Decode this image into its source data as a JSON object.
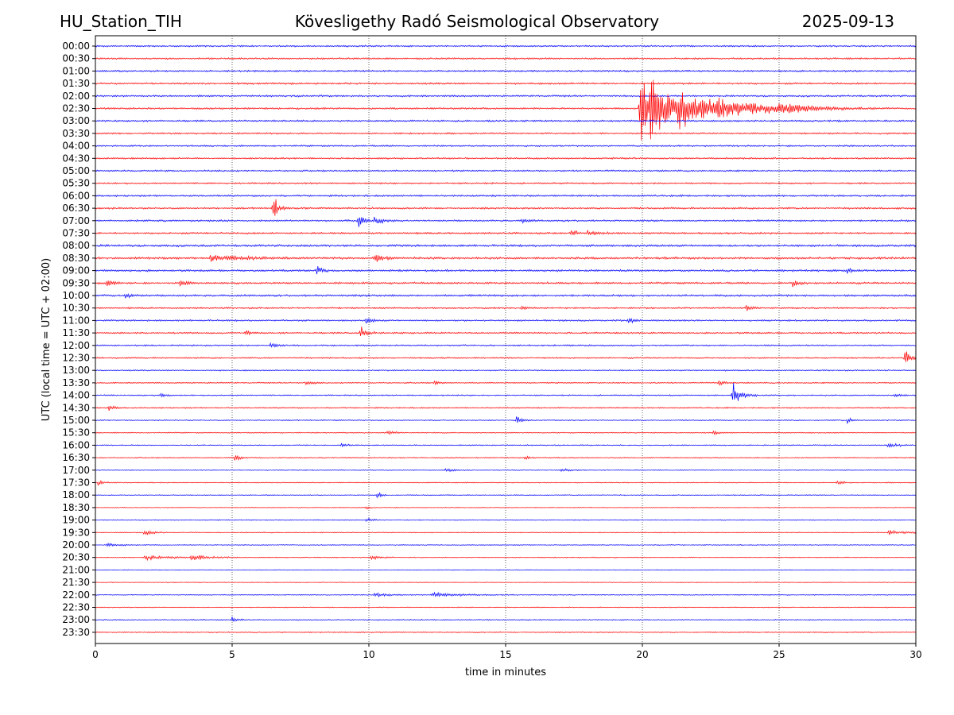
{
  "header": {
    "station": "HU_Station_TIH",
    "observatory": "Kövesligethy Radó Seismological Observatory",
    "date": "2025-09-13"
  },
  "chart_data": {
    "type": "line",
    "title": "Kövesligethy Radó Seismological Observatory",
    "xlabel": "time in minutes",
    "ylabel": "UTC (local time = UTC + 02:00)",
    "xlim": [
      0,
      30
    ],
    "xticks": [
      "0",
      "5",
      "10",
      "15",
      "20",
      "25",
      "30"
    ],
    "grid": "vertical dotted lines at x = 5, 10, 15, 20, 25",
    "colors": {
      "even_rows": "#0000ff",
      "odd_rows": "#ff0000"
    },
    "rows": [
      {
        "label": "00:00",
        "color": "blue",
        "noise": 0.45,
        "events": []
      },
      {
        "label": "00:30",
        "color": "red",
        "noise": 0.45,
        "events": []
      },
      {
        "label": "01:00",
        "color": "blue",
        "noise": 0.5,
        "events": []
      },
      {
        "label": "01:30",
        "color": "red",
        "noise": 0.5,
        "events": []
      },
      {
        "label": "02:00",
        "color": "blue",
        "noise": 0.5,
        "events": []
      },
      {
        "label": "02:30",
        "color": "red",
        "noise": 0.5,
        "events": [
          {
            "t": 19.9,
            "amp": 11,
            "dur": 0.4
          },
          {
            "t": 20.3,
            "amp": 6,
            "dur": 1.0
          },
          {
            "t": 21.3,
            "amp": 3,
            "dur": 1.6
          },
          {
            "t": 22.8,
            "amp": 1.5,
            "dur": 2.0
          },
          {
            "t": 25.0,
            "amp": 0.8,
            "dur": 1.0
          }
        ]
      },
      {
        "label": "03:00",
        "color": "blue",
        "noise": 0.5,
        "events": []
      },
      {
        "label": "03:30",
        "color": "red",
        "noise": 0.45,
        "events": []
      },
      {
        "label": "04:00",
        "color": "blue",
        "noise": 0.45,
        "events": []
      },
      {
        "label": "04:30",
        "color": "red",
        "noise": 0.45,
        "events": []
      },
      {
        "label": "05:00",
        "color": "blue",
        "noise": 0.45,
        "events": []
      },
      {
        "label": "05:30",
        "color": "red",
        "noise": 0.45,
        "events": []
      },
      {
        "label": "06:00",
        "color": "blue",
        "noise": 0.5,
        "events": []
      },
      {
        "label": "06:30",
        "color": "red",
        "noise": 0.5,
        "events": [
          {
            "t": 6.5,
            "amp": 3.5,
            "dur": 0.15
          }
        ]
      },
      {
        "label": "07:00",
        "color": "blue",
        "noise": 0.5,
        "events": [
          {
            "t": 9.6,
            "amp": 1.8,
            "dur": 0.2
          },
          {
            "t": 10.2,
            "amp": 1.0,
            "dur": 0.3
          },
          {
            "t": 15.6,
            "amp": 0.6,
            "dur": 0.2
          }
        ]
      },
      {
        "label": "07:30",
        "color": "red",
        "noise": 0.5,
        "events": [
          {
            "t": 17.4,
            "amp": 0.8,
            "dur": 0.2
          },
          {
            "t": 18.0,
            "amp": 0.8,
            "dur": 0.3
          }
        ]
      },
      {
        "label": "08:00",
        "color": "blue",
        "noise": 0.6,
        "events": []
      },
      {
        "label": "08:30",
        "color": "red",
        "noise": 0.6,
        "events": [
          {
            "t": 4.2,
            "amp": 0.8,
            "dur": 1.0
          },
          {
            "t": 10.2,
            "amp": 1.2,
            "dur": 0.3
          }
        ]
      },
      {
        "label": "09:00",
        "color": "blue",
        "noise": 0.55,
        "events": [
          {
            "t": 8.1,
            "amp": 1.2,
            "dur": 0.2
          },
          {
            "t": 27.5,
            "amp": 0.6,
            "dur": 0.2
          }
        ]
      },
      {
        "label": "09:30",
        "color": "red",
        "noise": 0.55,
        "events": [
          {
            "t": 0.4,
            "amp": 1.2,
            "dur": 0.2
          },
          {
            "t": 3.1,
            "amp": 0.7,
            "dur": 0.2
          },
          {
            "t": 25.5,
            "amp": 0.8,
            "dur": 0.2
          }
        ]
      },
      {
        "label": "10:00",
        "color": "blue",
        "noise": 0.55,
        "events": [
          {
            "t": 1.1,
            "amp": 1.0,
            "dur": 0.2
          }
        ]
      },
      {
        "label": "10:30",
        "color": "red",
        "noise": 0.45,
        "events": [
          {
            "t": 15.6,
            "amp": 0.6,
            "dur": 0.2
          },
          {
            "t": 23.8,
            "amp": 0.8,
            "dur": 0.2
          }
        ]
      },
      {
        "label": "11:00",
        "color": "blue",
        "noise": 0.45,
        "events": [
          {
            "t": 9.9,
            "amp": 0.8,
            "dur": 0.2
          },
          {
            "t": 19.5,
            "amp": 1.2,
            "dur": 0.15
          }
        ]
      },
      {
        "label": "11:30",
        "color": "red",
        "noise": 0.45,
        "events": [
          {
            "t": 5.5,
            "amp": 0.7,
            "dur": 0.2
          },
          {
            "t": 9.7,
            "amp": 1.8,
            "dur": 0.2
          }
        ]
      },
      {
        "label": "12:00",
        "color": "blue",
        "noise": 0.4,
        "events": [
          {
            "t": 6.4,
            "amp": 0.7,
            "dur": 0.2
          }
        ]
      },
      {
        "label": "12:30",
        "color": "red",
        "noise": 0.4,
        "events": [
          {
            "t": 29.6,
            "amp": 2.0,
            "dur": 0.2
          }
        ]
      },
      {
        "label": "13:00",
        "color": "blue",
        "noise": 0.35,
        "events": []
      },
      {
        "label": "13:30",
        "color": "red",
        "noise": 0.35,
        "events": [
          {
            "t": 7.7,
            "amp": 0.8,
            "dur": 0.2
          },
          {
            "t": 12.4,
            "amp": 0.6,
            "dur": 0.2
          },
          {
            "t": 22.8,
            "amp": 0.6,
            "dur": 0.2
          }
        ]
      },
      {
        "label": "14:00",
        "color": "blue",
        "noise": 0.35,
        "events": [
          {
            "t": 2.4,
            "amp": 0.5,
            "dur": 0.2
          },
          {
            "t": 23.3,
            "amp": 3.2,
            "dur": 0.3
          },
          {
            "t": 29.2,
            "amp": 0.6,
            "dur": 0.2
          }
        ]
      },
      {
        "label": "14:30",
        "color": "red",
        "noise": 0.35,
        "events": [
          {
            "t": 0.5,
            "amp": 0.8,
            "dur": 0.2
          }
        ]
      },
      {
        "label": "15:00",
        "color": "blue",
        "noise": 0.3,
        "events": [
          {
            "t": 15.4,
            "amp": 1.2,
            "dur": 0.15
          },
          {
            "t": 27.5,
            "amp": 0.8,
            "dur": 0.15
          }
        ]
      },
      {
        "label": "15:30",
        "color": "red",
        "noise": 0.3,
        "events": [
          {
            "t": 10.7,
            "amp": 0.6,
            "dur": 0.2
          },
          {
            "t": 22.6,
            "amp": 0.5,
            "dur": 0.2
          }
        ]
      },
      {
        "label": "16:00",
        "color": "blue",
        "noise": 0.3,
        "events": [
          {
            "t": 9.0,
            "amp": 0.5,
            "dur": 0.2
          },
          {
            "t": 29.0,
            "amp": 0.7,
            "dur": 0.3
          }
        ]
      },
      {
        "label": "16:30",
        "color": "red",
        "noise": 0.3,
        "events": [
          {
            "t": 5.1,
            "amp": 1.4,
            "dur": 0.15
          },
          {
            "t": 15.7,
            "amp": 0.7,
            "dur": 0.15
          }
        ]
      },
      {
        "label": "17:00",
        "color": "blue",
        "noise": 0.25,
        "events": [
          {
            "t": 12.8,
            "amp": 0.5,
            "dur": 0.3
          },
          {
            "t": 17.0,
            "amp": 0.5,
            "dur": 0.3
          }
        ]
      },
      {
        "label": "17:30",
        "color": "red",
        "noise": 0.25,
        "events": [
          {
            "t": 0.1,
            "amp": 0.6,
            "dur": 0.2
          },
          {
            "t": 27.1,
            "amp": 0.6,
            "dur": 0.2
          }
        ]
      },
      {
        "label": "18:00",
        "color": "blue",
        "noise": 0.25,
        "events": [
          {
            "t": 10.3,
            "amp": 0.9,
            "dur": 0.15
          }
        ]
      },
      {
        "label": "18:30",
        "color": "red",
        "noise": 0.2,
        "events": [
          {
            "t": 9.9,
            "amp": 0.5,
            "dur": 0.1
          }
        ]
      },
      {
        "label": "19:00",
        "color": "blue",
        "noise": 0.25,
        "events": [
          {
            "t": 9.9,
            "amp": 0.6,
            "dur": 0.2
          }
        ]
      },
      {
        "label": "19:30",
        "color": "red",
        "noise": 0.25,
        "events": [
          {
            "t": 1.8,
            "amp": 0.8,
            "dur": 0.3
          },
          {
            "t": 29.0,
            "amp": 0.5,
            "dur": 0.6
          }
        ]
      },
      {
        "label": "20:00",
        "color": "blue",
        "noise": 0.25,
        "events": [
          {
            "t": 0.4,
            "amp": 0.5,
            "dur": 0.4
          }
        ]
      },
      {
        "label": "20:30",
        "color": "red",
        "noise": 0.25,
        "events": [
          {
            "t": 1.8,
            "amp": 0.6,
            "dur": 0.8
          },
          {
            "t": 3.5,
            "amp": 0.7,
            "dur": 0.6
          },
          {
            "t": 10.1,
            "amp": 0.6,
            "dur": 0.3
          }
        ]
      },
      {
        "label": "21:00",
        "color": "blue",
        "noise": 0.2,
        "events": []
      },
      {
        "label": "21:30",
        "color": "red",
        "noise": 0.2,
        "events": []
      },
      {
        "label": "22:00",
        "color": "blue",
        "noise": 0.25,
        "events": [
          {
            "t": 10.2,
            "amp": 0.5,
            "dur": 0.6
          },
          {
            "t": 12.3,
            "amp": 0.6,
            "dur": 1.0
          }
        ]
      },
      {
        "label": "22:30",
        "color": "red",
        "noise": 0.25,
        "events": []
      },
      {
        "label": "23:00",
        "color": "blue",
        "noise": 0.3,
        "events": [
          {
            "t": 5.0,
            "amp": 0.7,
            "dur": 0.2
          }
        ]
      },
      {
        "label": "23:30",
        "color": "red",
        "noise": 0.3,
        "events": []
      }
    ]
  }
}
